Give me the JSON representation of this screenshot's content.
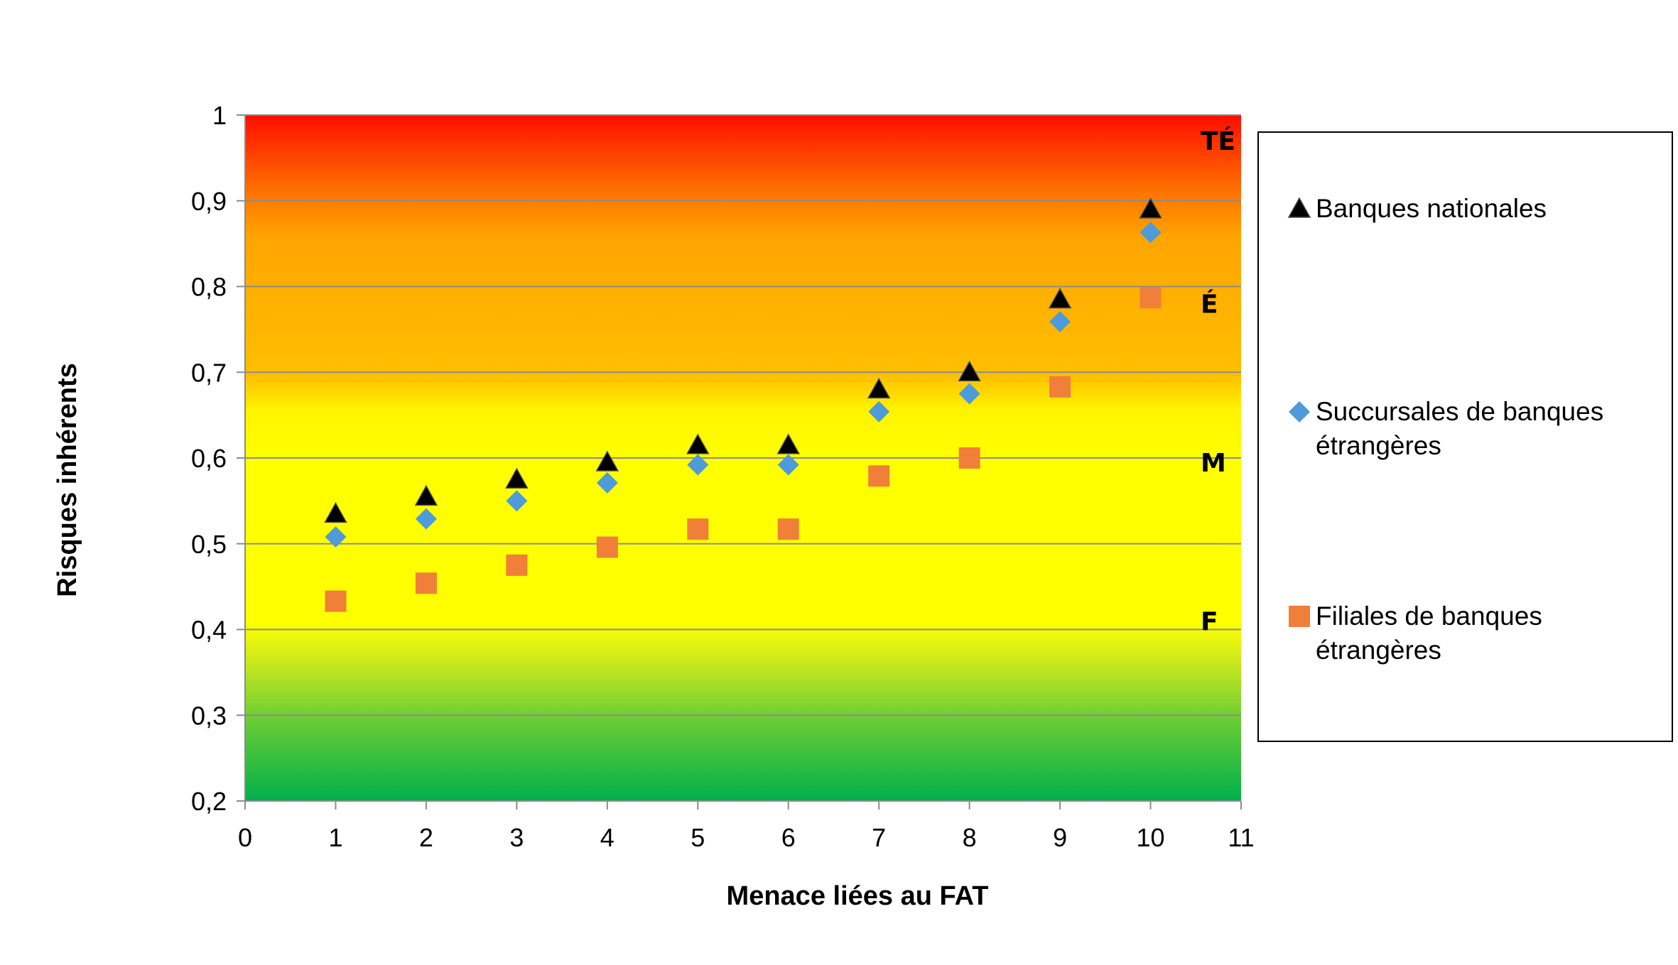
{
  "chart_data": {
    "type": "scatter",
    "xlabel": "Menace liées au FAT",
    "ylabel": "Risques inhérents",
    "xlim": [
      0,
      11
    ],
    "ylim": [
      0.2,
      1
    ],
    "x_ticks": [
      "0",
      "1",
      "2",
      "3",
      "4",
      "5",
      "6",
      "7",
      "8",
      "9",
      "10",
      "11"
    ],
    "y_ticks": [
      "0,2",
      "0,3",
      "0,4",
      "0,5",
      "0,6",
      "0,7",
      "0,8",
      "0,9",
      "1"
    ],
    "grid": "horizontal",
    "legend_position": "right",
    "background": "gradient green (low) to yellow to orange to red (high)",
    "zones": [
      {
        "label": "TÉ",
        "y": 0.97
      },
      {
        "label": "É",
        "y": 0.78
      },
      {
        "label": "M",
        "y": 0.595
      },
      {
        "label": "F",
        "y": 0.41
      }
    ],
    "series": [
      {
        "name": "Banques nationales",
        "marker": "triangle",
        "color": "#000000",
        "x": [
          1,
          2,
          3,
          4,
          5,
          6,
          7,
          8,
          9,
          10
        ],
        "y": [
          0.535,
          0.555,
          0.575,
          0.595,
          0.615,
          0.615,
          0.68,
          0.7,
          0.785,
          0.89
        ]
      },
      {
        "name": "Succursales de banques étrangères",
        "name_lines": [
          "Succursales de banques",
          "étrangères"
        ],
        "marker": "diamond",
        "color": "#4f9ad8",
        "x": [
          1,
          2,
          3,
          4,
          5,
          6,
          7,
          8,
          9,
          10
        ],
        "y": [
          0.508,
          0.529,
          0.55,
          0.571,
          0.592,
          0.592,
          0.654,
          0.675,
          0.759,
          0.863
        ]
      },
      {
        "name": "Filiales de banques étrangères",
        "name_lines": [
          "Filiales de banques",
          "étrangères"
        ],
        "marker": "square",
        "color": "#f07f3a",
        "x": [
          1,
          2,
          3,
          4,
          5,
          6,
          7,
          8,
          9,
          10
        ],
        "y": [
          0.433,
          0.454,
          0.475,
          0.496,
          0.517,
          0.517,
          0.579,
          0.6,
          0.683,
          0.787
        ]
      }
    ]
  }
}
